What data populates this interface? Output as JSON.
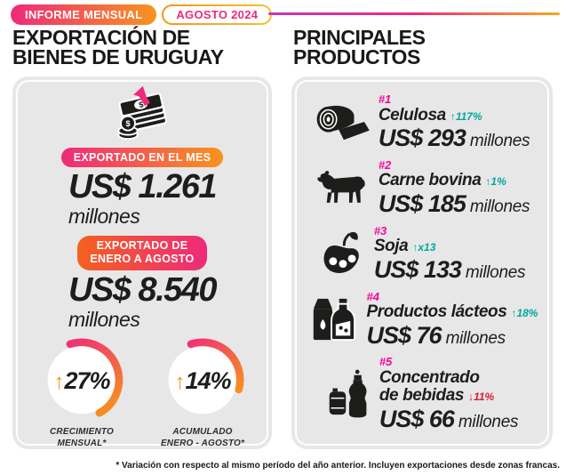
{
  "header": {
    "badge1": "INFORME MENSUAL",
    "badge2": "AGOSTO 2024"
  },
  "left": {
    "title_line1": "EXPORTACIÓN DE",
    "title_line2": "BIENES DE URUGUAY",
    "month": {
      "badge": "EXPORTADO EN EL MES",
      "value": "US$ 1.261",
      "unit": "millones"
    },
    "ytd": {
      "badge_line1": "EXPORTADO DE",
      "badge_line2": "ENERO A AGOSTO",
      "value": "US$ 8.540",
      "unit": "millones"
    },
    "gauges": [
      {
        "arrow": "↑",
        "value": "27%",
        "label_line1": "CRECIMIENTO",
        "label_line2": "MENSUAL*",
        "arc_sweep_deg": 170
      },
      {
        "arrow": "↑",
        "value": "14%",
        "label_line1": "ACUMULADO",
        "label_line2": "ENERO - AGOSTO*",
        "arc_sweep_deg": 123
      }
    ]
  },
  "right": {
    "title_line1": "PRINCIPALES",
    "title_line2": "PRODUCTOS",
    "products": [
      {
        "rank": "#1",
        "name": "Celulosa",
        "arrow": "↑",
        "change": "117%",
        "direction": "up",
        "value": "US$ 293",
        "unit": "millones",
        "icon": "pulp-roll-icon"
      },
      {
        "rank": "#2",
        "name": "Carne bovina",
        "arrow": "↑",
        "change": "1%",
        "direction": "up",
        "value": "US$ 185",
        "unit": "millones",
        "icon": "cow-icon"
      },
      {
        "rank": "#3",
        "name": "Soja",
        "arrow": "↑",
        "change": "x13",
        "direction": "up",
        "value": "US$ 133",
        "unit": "millones",
        "icon": "soybean-pod-icon"
      },
      {
        "rank": "#4",
        "name": "Productos lácteos",
        "arrow": "↑",
        "change": "18%",
        "direction": "up",
        "value": "US$ 76",
        "unit": "millones",
        "icon": "dairy-products-icon"
      },
      {
        "rank": "#5",
        "name": "Concentrado",
        "name2": "de bebidas",
        "arrow": "↓",
        "change": "11%",
        "direction": "down",
        "value": "US$ 66",
        "unit": "millones",
        "icon": "beverage-bottles-icon"
      }
    ]
  },
  "footnote": "* Variación con respecto al mismo período del año anterior. Incluyen exportaciones desde zonas francas.",
  "colors": {
    "pink": "#ee2a7b",
    "magenta": "#f5059b",
    "orange": "#f7941d",
    "teal": "#00a79d",
    "red": "#d91a32",
    "card_bg": "#e8e7e7",
    "text": "#1d1d1b"
  },
  "chart_data": [
    {
      "type": "table",
      "title": "Exportación de bienes de Uruguay — Agosto 2024",
      "rows": [
        [
          "Exportado en el mes (US$ millones)",
          1261
        ],
        [
          "Exportado de enero a agosto (US$ millones)",
          8540
        ],
        [
          "Crecimiento mensual (%)",
          27
        ],
        [
          "Acumulado enero - agosto (%)",
          14
        ]
      ]
    },
    {
      "type": "bar",
      "title": "Principales productos (US$ millones)",
      "categories": [
        "Celulosa",
        "Carne bovina",
        "Soja",
        "Productos lácteos",
        "Concentrado de bebidas"
      ],
      "values": [
        293,
        185,
        133,
        76,
        66
      ],
      "annotations": [
        "+117%",
        "+1%",
        "x13",
        "+18%",
        "-11%"
      ]
    }
  ]
}
